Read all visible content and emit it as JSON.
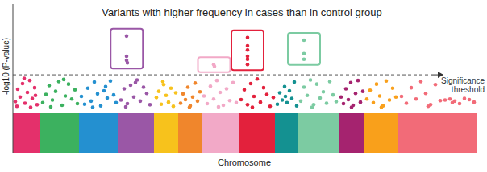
{
  "chart_data": {
    "type": "scatter",
    "title": "Variants with higher frequency in cases than in control group",
    "xlabel": "Chromosome",
    "ylabel": "-log10 (P-value)",
    "xlim": [
      0,
      575
    ],
    "ylim": [
      0,
      21
    ],
    "tick_labels": false,
    "threshold": {
      "value": 7.3,
      "label": "Significance threshold"
    },
    "series": [
      {
        "color": "#e4306b",
        "range": [
          0,
          34
        ],
        "x": [
          3,
          6,
          9,
          12,
          15,
          18,
          21,
          24,
          27,
          30,
          5,
          14,
          22,
          28
        ],
        "values": [
          2.1,
          4.5,
          3.0,
          5.6,
          1.8,
          3.9,
          6.2,
          2.7,
          4.8,
          1.5,
          1.2,
          6.6,
          1.0,
          3.3
        ]
      },
      {
        "color": "#3cb15f",
        "range": [
          34,
          82
        ],
        "x": [
          37,
          41,
          45,
          49,
          53,
          57,
          61,
          65,
          69,
          73,
          77,
          80,
          47,
          63
        ],
        "values": [
          1.9,
          3.5,
          5.2,
          2.4,
          4.1,
          6.0,
          1.4,
          3.2,
          5.5,
          2.6,
          4.4,
          1.7,
          1.1,
          6.4
        ]
      },
      {
        "color": "#2490d0",
        "range": [
          82,
          130
        ],
        "x": [
          85,
          89,
          93,
          97,
          101,
          105,
          109,
          113,
          117,
          121,
          125,
          128,
          99,
          115
        ],
        "values": [
          3.1,
          1.6,
          4.7,
          2.2,
          5.9,
          3.6,
          1.3,
          4.2,
          2.8,
          6.1,
          3.4,
          1.9,
          1.0,
          5.0
        ]
      },
      {
        "color": "#9a57a6",
        "range": [
          130,
          175
        ],
        "x": [
          134,
          138,
          142,
          146,
          150,
          154,
          158,
          162,
          166,
          170,
          140,
          152,
          141,
          141,
          141,
          142
        ],
        "values": [
          2.4,
          4.6,
          1.7,
          5.3,
          3.0,
          6.3,
          2.2,
          4.9,
          3.7,
          1.5,
          1.1,
          5.8,
          14.8,
          10.9,
          10.1,
          9.6
        ]
      },
      {
        "color": "#f7c21c",
        "range": [
          175,
          205
        ],
        "x": [
          178,
          181,
          184,
          187,
          190,
          193,
          196,
          199,
          202,
          186
        ],
        "values": [
          2.9,
          4.1,
          1.6,
          5.4,
          3.3,
          2.0,
          4.7,
          1.2,
          3.8,
          6.0
        ]
      },
      {
        "color": "#f0862c",
        "range": [
          205,
          234
        ],
        "x": [
          208,
          211,
          214,
          217,
          220,
          223,
          226,
          229,
          232,
          219
        ],
        "values": [
          1.8,
          3.6,
          2.5,
          4.9,
          1.3,
          3.0,
          5.7,
          2.2,
          4.0,
          1.0
        ]
      },
      {
        "color": "#f2a9c7",
        "range": [
          234,
          280
        ],
        "x": [
          237,
          241,
          245,
          249,
          253,
          257,
          261,
          265,
          269,
          273,
          277,
          255,
          249,
          250
        ],
        "values": [
          3.2,
          1.7,
          5.1,
          2.6,
          6.2,
          3.9,
          1.4,
          4.6,
          2.3,
          5.8,
          1.9,
          1.1,
          9.3,
          8.9
        ]
      },
      {
        "color": "#e3213c",
        "range": [
          280,
          325
        ],
        "x": [
          283,
          287,
          291,
          295,
          299,
          303,
          307,
          311,
          315,
          319,
          323,
          297,
          291,
          291,
          291,
          291,
          291,
          291
        ],
        "values": [
          2.5,
          4.4,
          1.5,
          5.6,
          3.1,
          6.5,
          2.0,
          4.8,
          3.5,
          1.2,
          2.9,
          1.0,
          14.5,
          12.9,
          12.1,
          10.9,
          10.3,
          9.3
        ]
      },
      {
        "color": "#149191",
        "range": [
          325,
          354
        ],
        "x": [
          328,
          331,
          334,
          337,
          340,
          343,
          346,
          349,
          352,
          338
        ],
        "values": [
          1.6,
          3.8,
          2.4,
          5.0,
          1.9,
          4.2,
          2.7,
          5.9,
          1.3,
          3.1
        ]
      },
      {
        "color": "#7ccba2",
        "range": [
          354,
          404
        ],
        "x": [
          357,
          361,
          365,
          369,
          373,
          377,
          381,
          385,
          389,
          393,
          397,
          401,
          371,
          361,
          361,
          361
        ],
        "values": [
          2.2,
          4.9,
          3.3,
          6.3,
          1.5,
          5.5,
          2.8,
          4.0,
          1.8,
          6.0,
          3.4,
          2.1,
          1.0,
          14.0,
          11.4,
          10.3
        ]
      },
      {
        "color": "#a5236f",
        "range": [
          404,
          436
        ],
        "x": [
          407,
          410,
          413,
          416,
          419,
          422,
          425,
          428,
          431,
          434,
          420
        ],
        "values": [
          3.0,
          1.7,
          4.6,
          2.5,
          5.8,
          1.4,
          3.7,
          6.2,
          2.0,
          4.1,
          1.0
        ]
      },
      {
        "color": "#f9a01b",
        "range": [
          436,
          478
        ],
        "x": [
          439,
          443,
          447,
          451,
          455,
          459,
          463,
          467,
          471,
          475,
          457
        ],
        "values": [
          2.6,
          4.3,
          1.9,
          5.5,
          3.2,
          1.3,
          6.1,
          2.4,
          4.7,
          3.0,
          1.0
        ]
      },
      {
        "color": "#f26b78",
        "range": [
          478,
          575
        ],
        "x": [
          482,
          488,
          494,
          500,
          506,
          512,
          518,
          524,
          530,
          536,
          542,
          545,
          548,
          554,
          560,
          566,
          572,
          515
        ],
        "values": [
          3.1,
          1.8,
          4.8,
          2.6,
          6.0,
          3.7,
          1.5,
          5.4,
          2.3,
          2.4,
          2.6,
          1.9,
          2.2,
          1.7,
          2.7,
          2.5,
          2.0,
          1.2
        ]
      }
    ]
  }
}
